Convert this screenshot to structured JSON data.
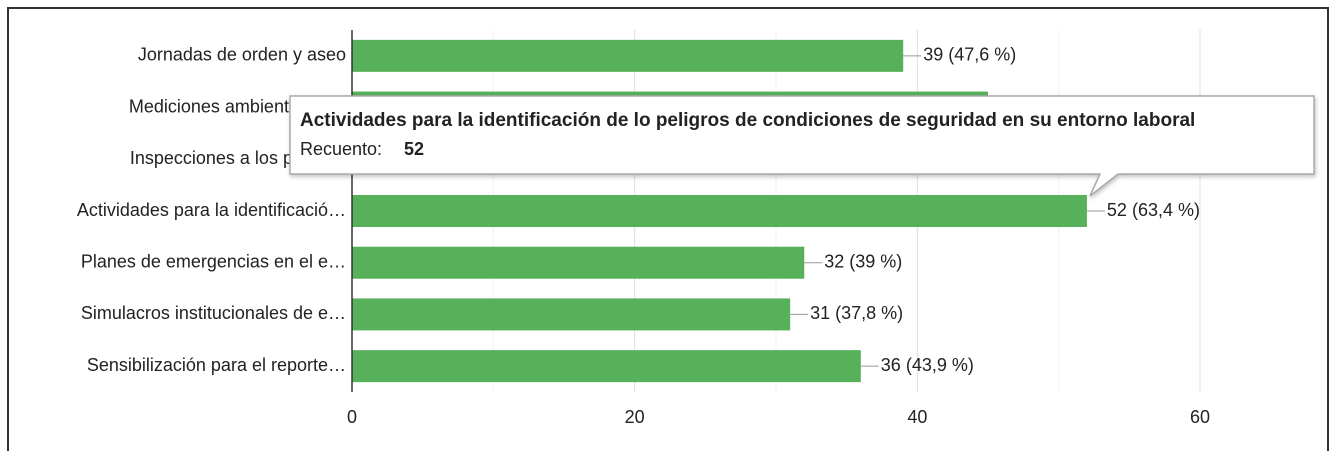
{
  "chart_data": {
    "type": "bar",
    "orientation": "horizontal",
    "categories": [
      "Jornadas de orden y aseo",
      "Mediciones ambientales co",
      "Inspecciones a los puestos",
      "Actividades para la identificació…",
      "Planes de emergencias en el e…",
      "Simulacros institucionales de e…",
      "Sensibilización para el reporte…"
    ],
    "values": [
      39,
      45,
      null,
      52,
      32,
      31,
      36
    ],
    "value_labels": [
      "39 (47,6 %)",
      null,
      null,
      "52 (63,4 %)",
      "32 (39 %)",
      "31 (37,8 %)",
      "36 (43,9 %)"
    ],
    "color": "#57b05a",
    "xlim": [
      0,
      60
    ],
    "xticks": [
      0,
      20,
      40,
      60
    ],
    "minor_xticks": [
      10,
      30,
      50
    ],
    "grid": true,
    "tooltip": {
      "title": "Actividades para la identificación de lo peligros de condiciones de seguridad en su entorno laboral",
      "label": "Recuento:",
      "value": 52,
      "category_index": 3
    }
  }
}
